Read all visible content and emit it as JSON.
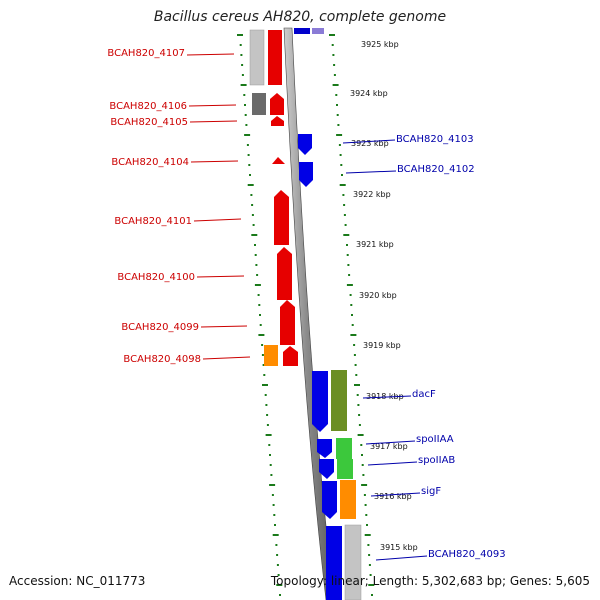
{
  "title": "Bacillus cereus AH820, complete genome",
  "footer": {
    "accession": "Accession: NC_011773",
    "summary": "Topology: linear; Length: 5,302,683 bp; Genes: 5,605"
  },
  "colors": {
    "strand_minus": "#e60000",
    "strand_plus": "#0000e6",
    "label_minus": "#cc0000",
    "label_plus": "#0000aa",
    "tick": "#1a7a1a",
    "backbone": "#8a8a8a"
  },
  "kbp_ticks": [
    "3925 kbp",
    "3924 kbp",
    "3923 kbp",
    "3922 kbp",
    "3921 kbp",
    "3920 kbp",
    "3919 kbp",
    "3918 kbp",
    "3917 kbp",
    "3916 kbp",
    "3915 kbp"
  ],
  "genes_minus": [
    {
      "label": "BCAH820_4107"
    },
    {
      "label": "BCAH820_4106"
    },
    {
      "label": "BCAH820_4105"
    },
    {
      "label": "BCAH820_4104"
    },
    {
      "label": "BCAH820_4101"
    },
    {
      "label": "BCAH820_4100"
    },
    {
      "label": "BCAH820_4099"
    },
    {
      "label": "BCAH820_4098"
    }
  ],
  "genes_plus": [
    {
      "label": "BCAH820_4103"
    },
    {
      "label": "BCAH820_4102"
    },
    {
      "label": "dacF"
    },
    {
      "label": "spoIIAA"
    },
    {
      "label": "spoIIAB"
    },
    {
      "label": "sigF"
    },
    {
      "label": "BCAH820_4093"
    }
  ]
}
